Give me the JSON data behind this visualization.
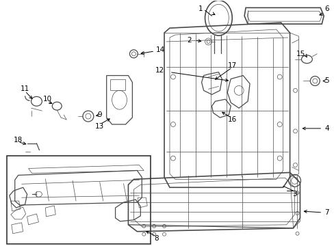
{
  "bg_color": "#ffffff",
  "line_color": "#4a4a4a",
  "text_color": "#000000",
  "fig_width": 4.89,
  "fig_height": 3.6,
  "dpi": 100,
  "lw_main": 0.9,
  "lw_thin": 0.5,
  "lw_thick": 1.2
}
